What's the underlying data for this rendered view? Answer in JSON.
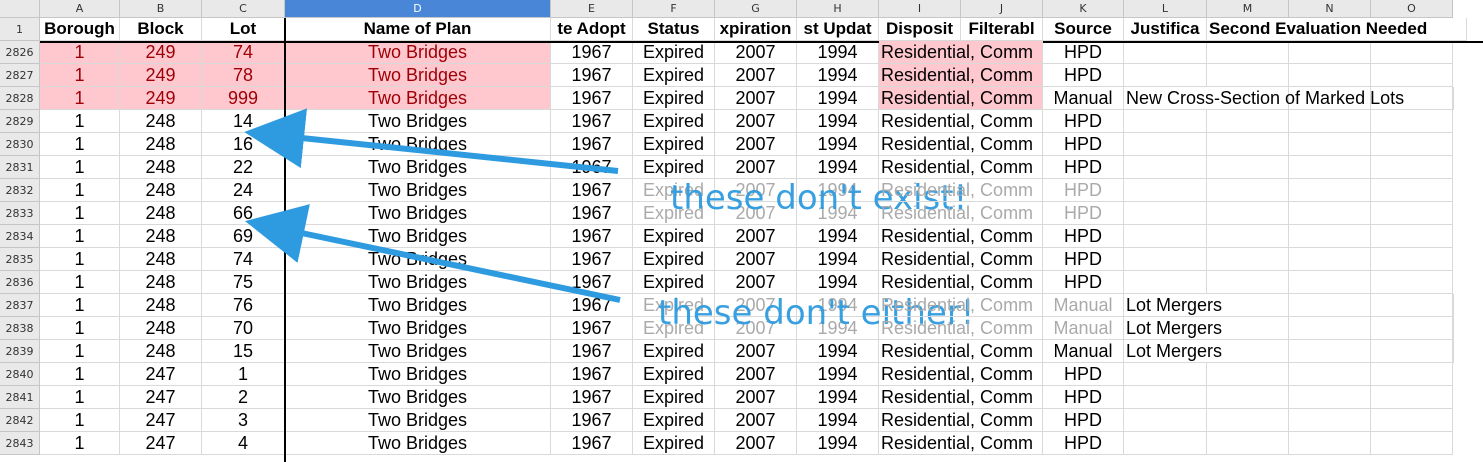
{
  "sheet": {
    "column_letters": [
      "A",
      "B",
      "C",
      "D",
      "E",
      "F",
      "G",
      "H",
      "I",
      "J",
      "K",
      "L",
      "M",
      "N",
      "O"
    ],
    "selected_column": "D",
    "header_row_number": "1",
    "headers": [
      "Borough",
      "Block",
      "Lot",
      "Name of Plan",
      "te Adopt",
      "Status",
      "xpiration",
      "st Updat",
      "Disposit",
      "Filterabl",
      "Source",
      "Justifica",
      "Second Evaluation Needed",
      "",
      ""
    ],
    "rows": [
      {
        "num": "2826",
        "cells": [
          "1",
          "249",
          "74",
          "Two Bridges",
          "1967",
          "Expired",
          "2007",
          "1994",
          "Residential, Comm",
          "",
          "HPD",
          "",
          "",
          "",
          ""
        ],
        "highlight": true
      },
      {
        "num": "2827",
        "cells": [
          "1",
          "249",
          "78",
          "Two Bridges",
          "1967",
          "Expired",
          "2007",
          "1994",
          "Residential, Comm",
          "",
          "HPD",
          "",
          "",
          "",
          ""
        ],
        "highlight": true
      },
      {
        "num": "2828",
        "cells": [
          "1",
          "249",
          "999",
          "Two Bridges",
          "1967",
          "Expired",
          "2007",
          "1994",
          "Residential, Comm",
          "",
          "Manual",
          "New Cross-Section of Marked Lots",
          "",
          "",
          ""
        ],
        "highlight": true
      },
      {
        "num": "2829",
        "cells": [
          "1",
          "248",
          "14",
          "Two Bridges",
          "1967",
          "Expired",
          "2007",
          "1994",
          "Residential, Comm",
          "",
          "HPD",
          "",
          "",
          "",
          ""
        ]
      },
      {
        "num": "2830",
        "cells": [
          "1",
          "248",
          "16",
          "Two Bridges",
          "1967",
          "Expired",
          "2007",
          "1994",
          "Residential, Comm",
          "",
          "HPD",
          "",
          "",
          "",
          ""
        ]
      },
      {
        "num": "2831",
        "cells": [
          "1",
          "248",
          "22",
          "Two Bridges",
          "1967",
          "Expired",
          "2007",
          "1994",
          "Residential, Comm",
          "",
          "HPD",
          "",
          "",
          "",
          ""
        ]
      },
      {
        "num": "2832",
        "cells": [
          "1",
          "248",
          "24",
          "Two Bridges",
          "1967",
          "Expired",
          "2007",
          "1994",
          "Residential, Comm",
          "",
          "HPD",
          "",
          "",
          "",
          ""
        ],
        "faded": true
      },
      {
        "num": "2833",
        "cells": [
          "1",
          "248",
          "66",
          "Two Bridges",
          "1967",
          "Expired",
          "2007",
          "1994",
          "Residential, Comm",
          "",
          "HPD",
          "",
          "",
          "",
          ""
        ],
        "faded": true
      },
      {
        "num": "2834",
        "cells": [
          "1",
          "248",
          "69",
          "Two Bridges",
          "1967",
          "Expired",
          "2007",
          "1994",
          "Residential, Comm",
          "",
          "HPD",
          "",
          "",
          "",
          ""
        ]
      },
      {
        "num": "2835",
        "cells": [
          "1",
          "248",
          "74",
          "Two Bridges",
          "1967",
          "Expired",
          "2007",
          "1994",
          "Residential, Comm",
          "",
          "HPD",
          "",
          "",
          "",
          ""
        ]
      },
      {
        "num": "2836",
        "cells": [
          "1",
          "248",
          "75",
          "Two Bridges",
          "1967",
          "Expired",
          "2007",
          "1994",
          "Residential, Comm",
          "",
          "HPD",
          "",
          "",
          "",
          ""
        ]
      },
      {
        "num": "2837",
        "cells": [
          "1",
          "248",
          "76",
          "Two Bridges",
          "1967",
          "Expired",
          "2007",
          "1994",
          "Residential, Comm",
          "",
          "Manual",
          "Lot Mergers",
          "",
          "",
          ""
        ],
        "faded": true
      },
      {
        "num": "2838",
        "cells": [
          "1",
          "248",
          "70",
          "Two Bridges",
          "1967",
          "Expired",
          "2007",
          "1994",
          "Residential, Comm",
          "",
          "Manual",
          "Lot Mergers",
          "",
          "",
          ""
        ],
        "faded": true
      },
      {
        "num": "2839",
        "cells": [
          "1",
          "248",
          "15",
          "Two Bridges",
          "1967",
          "Expired",
          "2007",
          "1994",
          "Residential, Comm",
          "",
          "Manual",
          "Lot Mergers",
          "",
          "",
          ""
        ]
      },
      {
        "num": "2840",
        "cells": [
          "1",
          "247",
          "1",
          "Two Bridges",
          "1967",
          "Expired",
          "2007",
          "1994",
          "Residential, Comm",
          "",
          "HPD",
          "",
          "",
          "",
          ""
        ]
      },
      {
        "num": "2841",
        "cells": [
          "1",
          "247",
          "2",
          "Two Bridges",
          "1967",
          "Expired",
          "2007",
          "1994",
          "Residential, Comm",
          "",
          "HPD",
          "",
          "",
          "",
          ""
        ]
      },
      {
        "num": "2842",
        "cells": [
          "1",
          "247",
          "3",
          "Two Bridges",
          "1967",
          "Expired",
          "2007",
          "1994",
          "Residential, Comm",
          "",
          "HPD",
          "",
          "",
          "",
          ""
        ]
      },
      {
        "num": "2843",
        "cells": [
          "1",
          "247",
          "4",
          "Two Bridges",
          "1967",
          "Expired",
          "2007",
          "1994",
          "Residential, Comm",
          "",
          "HPD",
          "",
          "",
          "",
          ""
        ]
      }
    ]
  },
  "annotations": {
    "text1": "these don't exist!",
    "text2": "these don't either!",
    "color": "#2e9be0"
  },
  "colors": {
    "highlight_bg": "#ffc7ce",
    "highlight_text": "#9c0006",
    "selected_header": "#4a86d8"
  }
}
